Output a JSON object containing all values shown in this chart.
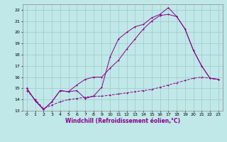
{
  "xlabel": "Windchill (Refroidissement éolien,°C)",
  "xlim": [
    -0.5,
    23.5
  ],
  "ylim": [
    13,
    22.5
  ],
  "xticks": [
    0,
    1,
    2,
    3,
    4,
    5,
    6,
    7,
    8,
    9,
    10,
    11,
    12,
    13,
    14,
    15,
    16,
    17,
    18,
    19,
    20,
    21,
    22,
    23
  ],
  "yticks": [
    13,
    14,
    15,
    16,
    17,
    18,
    19,
    20,
    21,
    22
  ],
  "background_color": "#c0e8e8",
  "line_color": "#880088",
  "grid_color": "#a0c8c8",
  "line1_x": [
    0,
    1,
    2,
    3,
    4,
    5,
    6,
    7,
    8,
    9,
    10,
    11,
    12,
    13,
    14,
    15,
    16,
    17,
    18,
    19,
    20,
    21,
    22,
    23
  ],
  "line1_y": [
    15.0,
    13.9,
    13.1,
    13.8,
    14.8,
    14.7,
    14.8,
    14.1,
    14.3,
    15.1,
    17.8,
    19.4,
    20.0,
    20.5,
    20.7,
    21.3,
    21.6,
    22.2,
    21.4,
    20.3,
    18.4,
    17.0,
    15.9,
    15.8
  ],
  "line2_x": [
    0,
    1,
    2,
    3,
    4,
    5,
    6,
    7,
    8,
    9,
    10,
    11,
    12,
    13,
    14,
    15,
    16,
    17,
    18,
    19,
    20,
    21,
    22,
    23
  ],
  "line2_y": [
    15.0,
    13.9,
    13.1,
    13.8,
    14.8,
    14.7,
    15.3,
    15.8,
    16.0,
    16.0,
    16.8,
    17.5,
    18.5,
    19.4,
    20.3,
    21.0,
    21.5,
    21.6,
    21.4,
    20.3,
    18.4,
    17.0,
    15.9,
    15.8
  ],
  "line3_x": [
    0,
    1,
    2,
    3,
    4,
    5,
    6,
    7,
    8,
    9,
    10,
    11,
    12,
    13,
    14,
    15,
    16,
    17,
    18,
    19,
    20,
    21,
    22,
    23
  ],
  "line3_y": [
    14.8,
    14.0,
    13.2,
    13.5,
    13.8,
    14.0,
    14.1,
    14.2,
    14.3,
    14.3,
    14.4,
    14.5,
    14.6,
    14.7,
    14.8,
    14.9,
    15.1,
    15.3,
    15.5,
    15.7,
    15.9,
    16.0,
    15.9,
    15.8
  ]
}
